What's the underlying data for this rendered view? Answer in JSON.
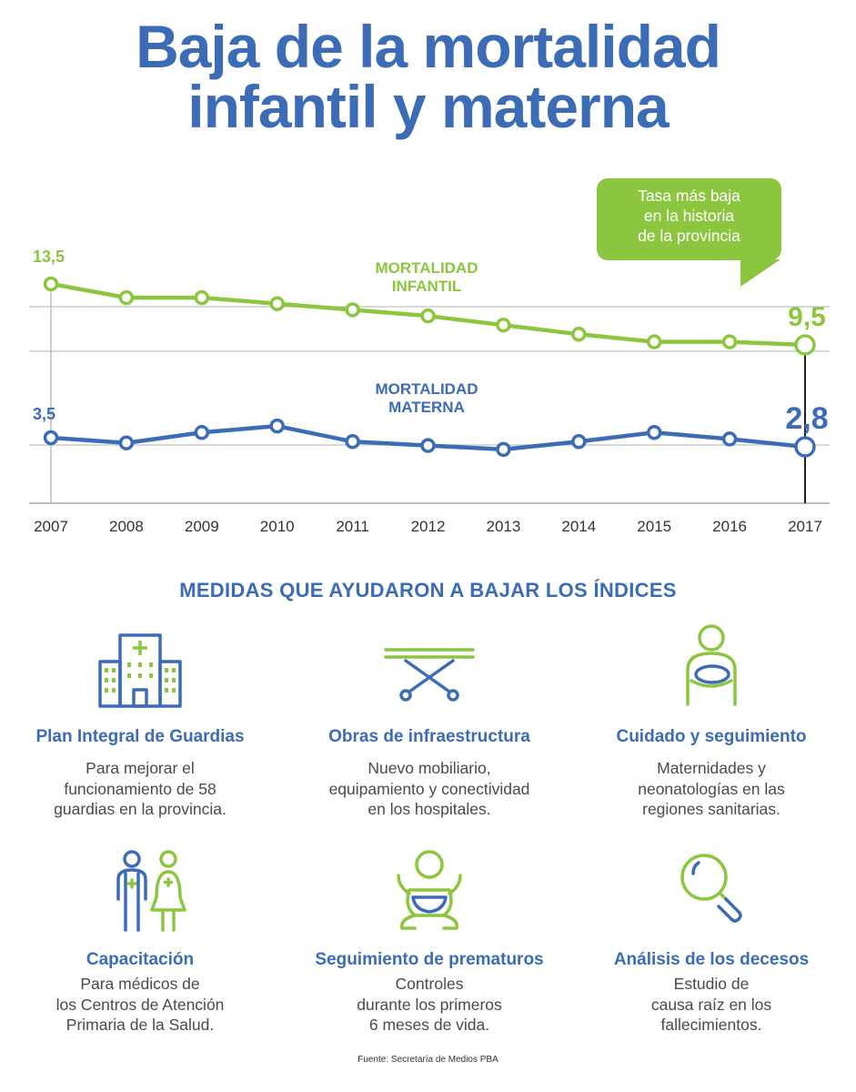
{
  "title": {
    "line1": "Baja de la mortalidad",
    "line2": "infantil y materna"
  },
  "chart_data": {
    "type": "line",
    "x": [
      "2007",
      "2008",
      "2009",
      "2010",
      "2011",
      "2012",
      "2013",
      "2014",
      "2015",
      "2016",
      "2017"
    ],
    "series": [
      {
        "name": "MORTALIDAD INFANTIL",
        "label_lines": [
          "MORTALIDAD",
          "INFANTIL"
        ],
        "color": "#8cc63f",
        "values": [
          13.5,
          12.6,
          12.6,
          12.2,
          11.8,
          11.4,
          10.8,
          10.2,
          9.7,
          9.7,
          9.5
        ],
        "start_label": "13,5",
        "end_label": "9,5"
      },
      {
        "name": "MORTALIDAD MATERNA",
        "label_lines": [
          "MORTALIDAD",
          "MATERNA"
        ],
        "color": "#3b6cb5",
        "values": [
          3.5,
          3.1,
          3.9,
          4.4,
          3.2,
          2.9,
          2.6,
          3.2,
          3.9,
          3.4,
          2.8
        ],
        "start_label": "3,5",
        "end_label": "2,8"
      }
    ],
    "annotation": [
      "Tasa más baja",
      "en la historia",
      "de la provincia"
    ],
    "grid": true,
    "axis_color": "#cccccc"
  },
  "section_heading": "MEDIDAS QUE AYUDARON A BAJAR LOS ÍNDICES",
  "measures": [
    {
      "icon": "hospital-icon",
      "title": "Plan Integral de Guardias",
      "lines": [
        "Para mejorar el",
        "funcionamiento de 58",
        "guardias en la provincia."
      ]
    },
    {
      "icon": "stretcher-icon",
      "title": "Obras de infraestructura",
      "lines": [
        "Nuevo mobiliario,",
        "equipamiento y conectividad",
        "en los hospitales."
      ]
    },
    {
      "icon": "mother-baby-icon",
      "title": "Cuidado y seguimiento",
      "lines": [
        "Maternidades y",
        "neonatologías en las",
        "regiones sanitarias."
      ]
    },
    {
      "icon": "doctors-icon",
      "title": "Capacitación",
      "lines": [
        "Para médicos de",
        "los Centros de Atención",
        "Primaria de la Salud."
      ]
    },
    {
      "icon": "baby-icon",
      "title": "Seguimiento de prematuros",
      "lines": [
        "Controles",
        "durante los primeros",
        "6 meses de vida."
      ]
    },
    {
      "icon": "magnifier-icon",
      "title": "Análisis de los decesos",
      "lines": [
        "Estudio de",
        "causa raíz en los",
        "fallecimientos."
      ]
    }
  ],
  "source": "Fuente: Secretaría de Medios PBA",
  "colors": {
    "blue": "#3b6cb5",
    "green": "#8cc63f",
    "grid": "#cccccc",
    "text": "#4a4a4a"
  }
}
